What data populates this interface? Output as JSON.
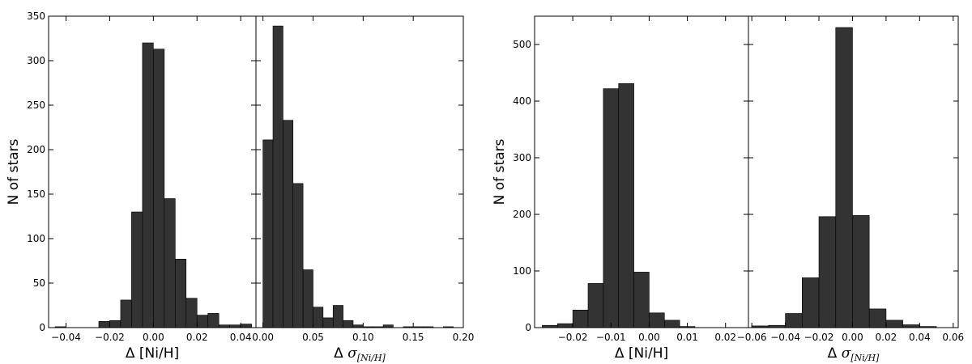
{
  "chart_data": [
    {
      "type": "bar",
      "ylabel": "N of stars",
      "ylim": [
        0,
        350
      ],
      "yticks": [
        0,
        50,
        100,
        150,
        200,
        250,
        300,
        350
      ],
      "panels": [
        {
          "xlabel_prefix": "Δ",
          "xlabel_main": "[Ni/H]",
          "xlabel_sub": "",
          "xlim": [
            -0.048,
            0.047
          ],
          "xticks": [
            -0.04,
            -0.02,
            0.0,
            0.02,
            0.04
          ],
          "xtick_labels": [
            "−0.04",
            "−0.02",
            "0.00",
            "0.02",
            "0.04"
          ],
          "bin_width": 0.005,
          "bin_starts": [
            -0.045,
            -0.04,
            -0.035,
            -0.03,
            -0.025,
            -0.02,
            -0.015,
            -0.01,
            -0.005,
            0.0,
            0.005,
            0.01,
            0.015,
            0.02,
            0.025,
            0.03,
            0.035,
            0.04
          ],
          "values": [
            1,
            0,
            0,
            0,
            7,
            8,
            31,
            130,
            320,
            313,
            145,
            77,
            33,
            14,
            16,
            3,
            3,
            4
          ]
        },
        {
          "xlabel_prefix": "Δ",
          "xlabel_main": "σ",
          "xlabel_sub": "[Ni/H]",
          "xlim": [
            -0.007,
            0.2
          ],
          "xticks": [
            0.0,
            0.05,
            0.1,
            0.15,
            0.2
          ],
          "xtick_labels": [
            "0.00",
            "0.05",
            "0.10",
            "0.15",
            "0.20"
          ],
          "bin_width": 0.01,
          "bin_starts": [
            0.0,
            0.01,
            0.02,
            0.03,
            0.04,
            0.05,
            0.06,
            0.07,
            0.08,
            0.09,
            0.1,
            0.11,
            0.12,
            0.13,
            0.14,
            0.15,
            0.16,
            0.17,
            0.18
          ],
          "values": [
            211,
            339,
            233,
            162,
            65,
            23,
            11,
            25,
            8,
            3,
            1,
            1,
            3,
            0,
            1,
            1,
            1,
            0,
            1
          ]
        }
      ]
    },
    {
      "type": "bar",
      "ylabel": "N of stars",
      "ylim": [
        0,
        550
      ],
      "yticks": [
        0,
        100,
        200,
        300,
        400,
        500
      ],
      "panels": [
        {
          "xlabel_prefix": "Δ",
          "xlabel_main": "[Ni/H]",
          "xlabel_sub": "",
          "xlim": [
            -0.03,
            0.026
          ],
          "xticks": [
            -0.02,
            -0.01,
            0.0,
            0.01,
            0.02
          ],
          "xtick_labels": [
            "−0.02",
            "−0.01",
            "0.00",
            "0.01",
            "0.02"
          ],
          "bin_width": 0.004,
          "bin_starts": [
            -0.028,
            -0.024,
            -0.02,
            -0.016,
            -0.012,
            -0.008,
            -0.004,
            0.0,
            0.004,
            0.008,
            0.012,
            0.016,
            0.02
          ],
          "values": [
            4,
            7,
            31,
            78,
            422,
            431,
            98,
            26,
            13,
            2,
            0,
            0,
            0
          ]
        },
        {
          "xlabel_prefix": "Δ",
          "xlabel_main": "σ",
          "xlabel_sub": "[Ni/H]",
          "xlim": [
            -0.062,
            0.063
          ],
          "xticks": [
            -0.06,
            -0.04,
            -0.02,
            0.0,
            0.02,
            0.04,
            0.06
          ],
          "xtick_labels": [
            "−0.06",
            "−0.04",
            "−0.02",
            "0.00",
            "0.02",
            "0.04",
            "0.06"
          ],
          "bin_width": 0.01,
          "bin_starts": [
            -0.06,
            -0.05,
            -0.04,
            -0.03,
            -0.02,
            -0.01,
            0.0,
            0.01,
            0.02,
            0.03,
            0.04
          ],
          "values": [
            3,
            4,
            25,
            88,
            196,
            530,
            198,
            33,
            13,
            5,
            2
          ]
        }
      ]
    }
  ]
}
